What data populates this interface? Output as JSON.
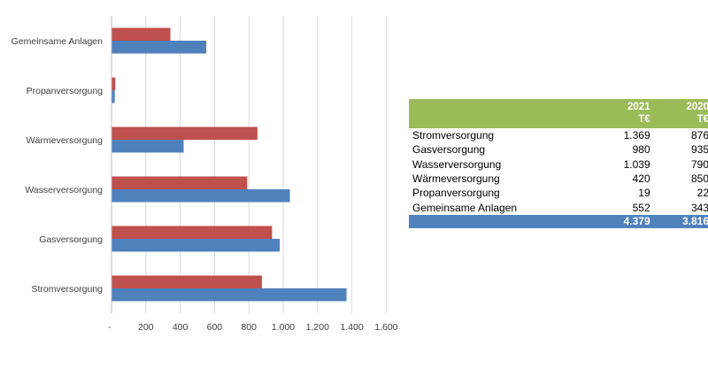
{
  "chart_data": {
    "type": "bar",
    "orientation": "horizontal",
    "categories": [
      "Gemeinsame Anlagen",
      "Propanversorgung",
      "Wärmeversorgung",
      "Wasserversorgung",
      "Gasversorgung",
      "Stromversorgung"
    ],
    "series": [
      {
        "values": [
          343,
          22,
          850,
          790,
          935,
          876
        ],
        "color": "#C0504D"
      },
      {
        "values": [
          552,
          19,
          420,
          1039,
          980,
          1369
        ],
        "color": "#4F81BD"
      }
    ],
    "xlim": [
      0,
      1600
    ],
    "x_ticks": [
      0,
      200,
      400,
      600,
      800,
      1000,
      1200,
      1400,
      1600
    ],
    "x_tick_labels": [
      "-",
      "200",
      "400",
      "600",
      "800",
      "1.000",
      "1.200",
      "1.400",
      "1.600"
    ],
    "grid": true,
    "gridline_color": "#D9D9D9"
  },
  "table": {
    "header_color": "#9BBB59",
    "footer_color": "#4F81BD",
    "year_headers": [
      "2021",
      "2020"
    ],
    "unit_headers": [
      "T€",
      "T€"
    ],
    "rows": [
      {
        "label": "Stromversorgung",
        "v2021": "1.369",
        "v2020": "876"
      },
      {
        "label": "Gasversorgung",
        "v2021": "980",
        "v2020": "935"
      },
      {
        "label": "Wasserversorgung",
        "v2021": "1.039",
        "v2020": "790"
      },
      {
        "label": "Wärmeversorgung",
        "v2021": "420",
        "v2020": "850"
      },
      {
        "label": "Propanversorgung",
        "v2021": "19",
        "v2020": "22"
      },
      {
        "label": "Gemeinsame Anlagen",
        "v2021": "552",
        "v2020": "343"
      }
    ],
    "totals": {
      "v2021": "4.379",
      "v2020": "3.816"
    }
  }
}
